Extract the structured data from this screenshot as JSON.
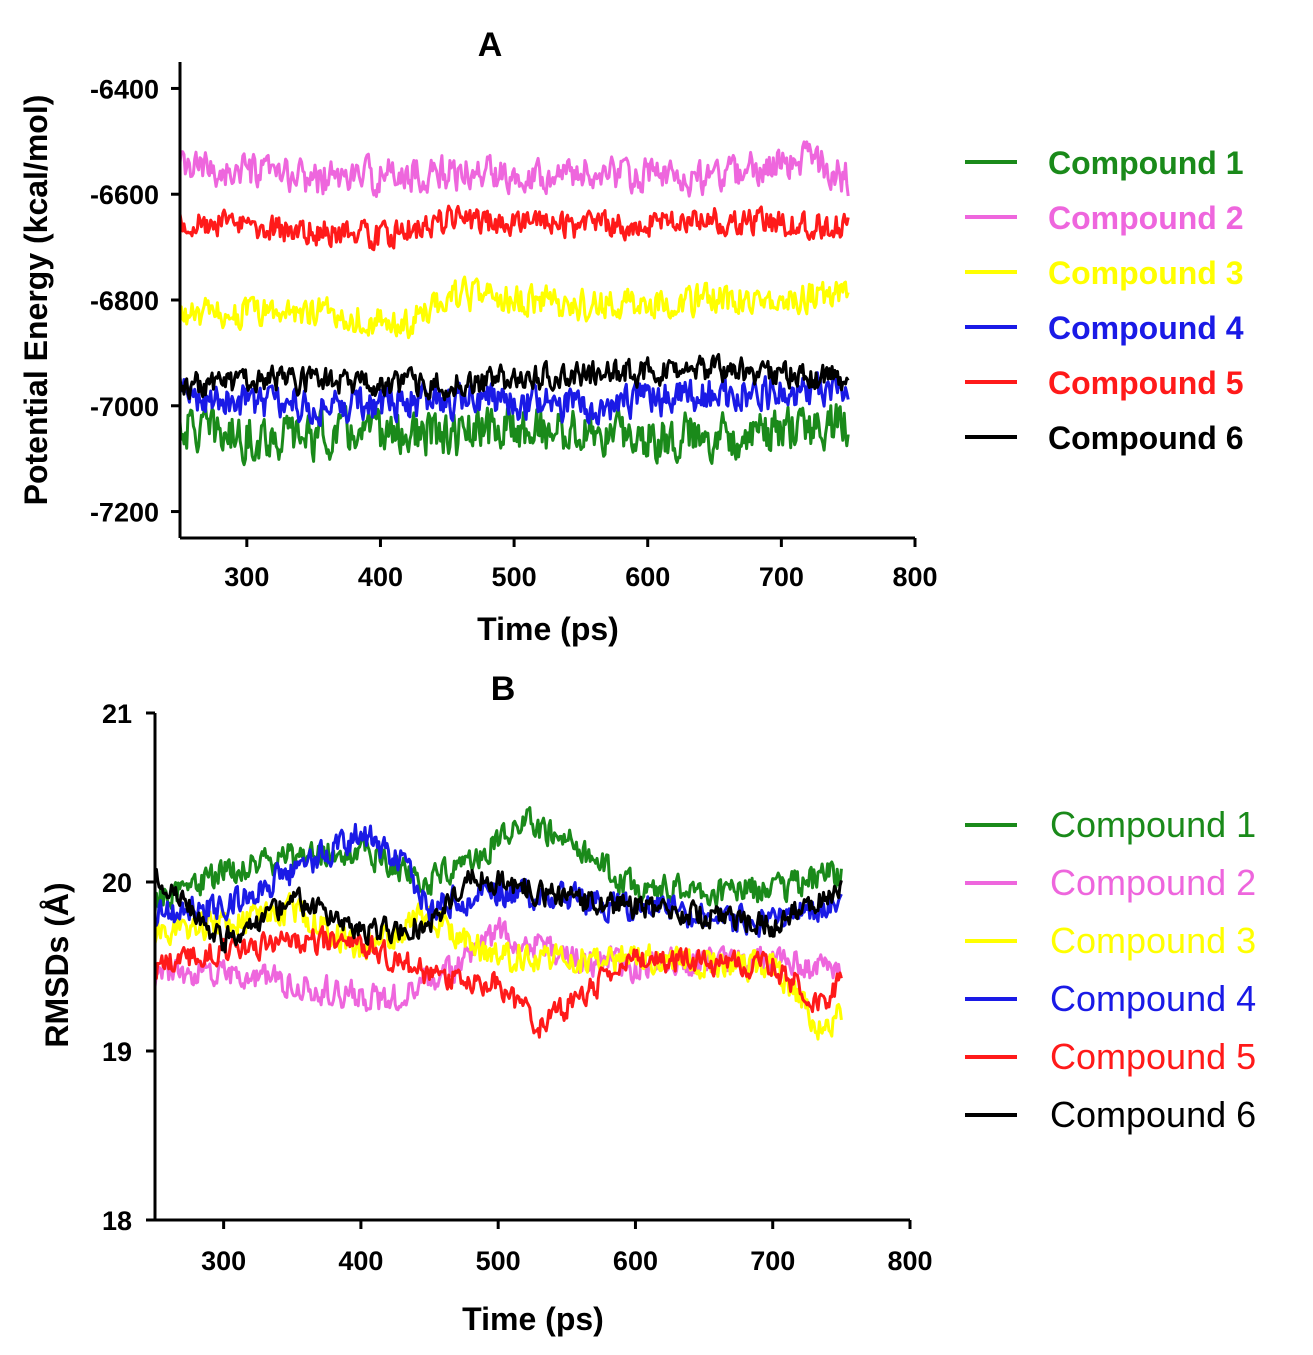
{
  "figure": {
    "panels": [
      "A",
      "B"
    ]
  },
  "chart_data": [
    {
      "type": "line",
      "panel": "A",
      "title": "A",
      "xlabel": "Time (ps)",
      "ylabel": "Potential Energy (kcal/mol)",
      "xlim": [
        250,
        800
      ],
      "ylim": [
        -7250,
        -6350
      ],
      "x_ticks": [
        300,
        400,
        500,
        600,
        700,
        800
      ],
      "x_tick_labels": [
        "300",
        "400",
        "500",
        "600",
        "700",
        "800"
      ],
      "y_ticks": [
        -7200,
        -7000,
        -6800,
        -6600,
        -6400
      ],
      "y_tick_labels": [
        "-7200",
        "-7000",
        "-6800",
        "-6600",
        "-6400"
      ],
      "x_range": [
        250,
        750
      ],
      "legend_position": "right",
      "series": [
        {
          "name": "Compound 1",
          "color": "#1a8a1a",
          "mean": -7050,
          "amplitude": 60,
          "anchors": [
            [
              250,
              -7040
            ],
            [
              300,
              -7060
            ],
            [
              400,
              -7050
            ],
            [
              450,
              -7060
            ],
            [
              500,
              -7040
            ],
            [
              600,
              -7060
            ],
            [
              700,
              -7050
            ],
            [
              750,
              -7030
            ]
          ]
        },
        {
          "name": "Compound 2",
          "color": "#ee66dd",
          "mean": -6560,
          "amplitude": 45,
          "anchors": [
            [
              250,
              -6550
            ],
            [
              350,
              -6570
            ],
            [
              450,
              -6560
            ],
            [
              550,
              -6560
            ],
            [
              650,
              -6570
            ],
            [
              720,
              -6530
            ],
            [
              750,
              -6570
            ]
          ]
        },
        {
          "name": "Compound 3",
          "color": "#ffff00",
          "mean": -6810,
          "amplitude": 40,
          "anchors": [
            [
              250,
              -6830
            ],
            [
              350,
              -6820
            ],
            [
              420,
              -6850
            ],
            [
              450,
              -6790
            ],
            [
              550,
              -6810
            ],
            [
              650,
              -6800
            ],
            [
              750,
              -6790
            ]
          ]
        },
        {
          "name": "Compound 4",
          "color": "#1a1ae6",
          "mean": -6990,
          "amplitude": 45,
          "anchors": [
            [
              250,
              -6980
            ],
            [
              350,
              -7000
            ],
            [
              450,
              -6990
            ],
            [
              550,
              -7000
            ],
            [
              650,
              -6980
            ],
            [
              750,
              -6970
            ]
          ]
        },
        {
          "name": "Compound 5",
          "color": "#ff1a1a",
          "mean": -6660,
          "amplitude": 35,
          "anchors": [
            [
              250,
              -6650
            ],
            [
              350,
              -6670
            ],
            [
              400,
              -6680
            ],
            [
              450,
              -6650
            ],
            [
              550,
              -6660
            ],
            [
              650,
              -6650
            ],
            [
              750,
              -6660
            ]
          ]
        },
        {
          "name": "Compound 6",
          "color": "#000000",
          "mean": -6950,
          "amplitude": 35,
          "anchors": [
            [
              250,
              -6960
            ],
            [
              350,
              -6950
            ],
            [
              450,
              -6960
            ],
            [
              550,
              -6940
            ],
            [
              650,
              -6930
            ],
            [
              750,
              -6950
            ]
          ]
        }
      ]
    },
    {
      "type": "line",
      "panel": "B",
      "title": "B",
      "xlabel": "Time (ps)",
      "ylabel": "RMSDs (Å)",
      "xlim": [
        250,
        800
      ],
      "ylim": [
        18,
        21
      ],
      "x_ticks": [
        300,
        400,
        500,
        600,
        700,
        800
      ],
      "x_tick_labels": [
        "300",
        "400",
        "500",
        "600",
        "700",
        "800"
      ],
      "y_ticks": [
        18,
        19,
        20,
        21
      ],
      "y_tick_labels": [
        "18",
        "19",
        "20",
        "21"
      ],
      "x_range": [
        250,
        750
      ],
      "legend_position": "right",
      "series": [
        {
          "name": "Compound 1",
          "color": "#1a8a1a",
          "mean": 20.0,
          "amplitude": 0.12,
          "anchors": [
            [
              250,
              19.9
            ],
            [
              300,
              20.05
            ],
            [
              350,
              20.15
            ],
            [
              400,
              20.2
            ],
            [
              450,
              20.0
            ],
            [
              520,
              20.35
            ],
            [
              540,
              20.3
            ],
            [
              600,
              19.95
            ],
            [
              700,
              19.95
            ],
            [
              750,
              20.05
            ]
          ]
        },
        {
          "name": "Compound 2",
          "color": "#ee66dd",
          "mean": 19.5,
          "amplitude": 0.12,
          "anchors": [
            [
              250,
              19.45
            ],
            [
              300,
              19.45
            ],
            [
              350,
              19.4
            ],
            [
              420,
              19.3
            ],
            [
              460,
              19.45
            ],
            [
              500,
              19.7
            ],
            [
              550,
              19.55
            ],
            [
              600,
              19.5
            ],
            [
              700,
              19.55
            ],
            [
              750,
              19.45
            ]
          ]
        },
        {
          "name": "Compound 3",
          "color": "#ffff00",
          "mean": 19.7,
          "amplitude": 0.12,
          "anchors": [
            [
              250,
              19.7
            ],
            [
              300,
              19.75
            ],
            [
              350,
              19.85
            ],
            [
              400,
              19.6
            ],
            [
              450,
              19.8
            ],
            [
              500,
              19.55
            ],
            [
              600,
              19.55
            ],
            [
              700,
              19.5
            ],
            [
              740,
              19.1
            ],
            [
              750,
              19.25
            ]
          ]
        },
        {
          "name": "Compound 4",
          "color": "#1a1ae6",
          "mean": 19.95,
          "amplitude": 0.12,
          "anchors": [
            [
              250,
              19.8
            ],
            [
              300,
              19.85
            ],
            [
              350,
              20.05
            ],
            [
              400,
              20.3
            ],
            [
              430,
              20.1
            ],
            [
              450,
              19.85
            ],
            [
              500,
              19.95
            ],
            [
              600,
              19.85
            ],
            [
              700,
              19.75
            ],
            [
              750,
              19.9
            ]
          ]
        },
        {
          "name": "Compound 5",
          "color": "#ff1a1a",
          "mean": 19.5,
          "amplitude": 0.1,
          "anchors": [
            [
              250,
              19.5
            ],
            [
              300,
              19.6
            ],
            [
              350,
              19.65
            ],
            [
              400,
              19.65
            ],
            [
              450,
              19.45
            ],
            [
              500,
              19.4
            ],
            [
              530,
              19.15
            ],
            [
              600,
              19.55
            ],
            [
              700,
              19.5
            ],
            [
              740,
              19.25
            ],
            [
              750,
              19.45
            ]
          ]
        },
        {
          "name": "Compound 6",
          "color": "#000000",
          "mean": 19.8,
          "amplitude": 0.1,
          "anchors": [
            [
              250,
              20.05
            ],
            [
              300,
              19.65
            ],
            [
              350,
              19.9
            ],
            [
              400,
              19.7
            ],
            [
              450,
              19.75
            ],
            [
              480,
              20.05
            ],
            [
              550,
              19.9
            ],
            [
              600,
              19.85
            ],
            [
              700,
              19.75
            ],
            [
              750,
              19.95
            ]
          ]
        }
      ]
    }
  ]
}
